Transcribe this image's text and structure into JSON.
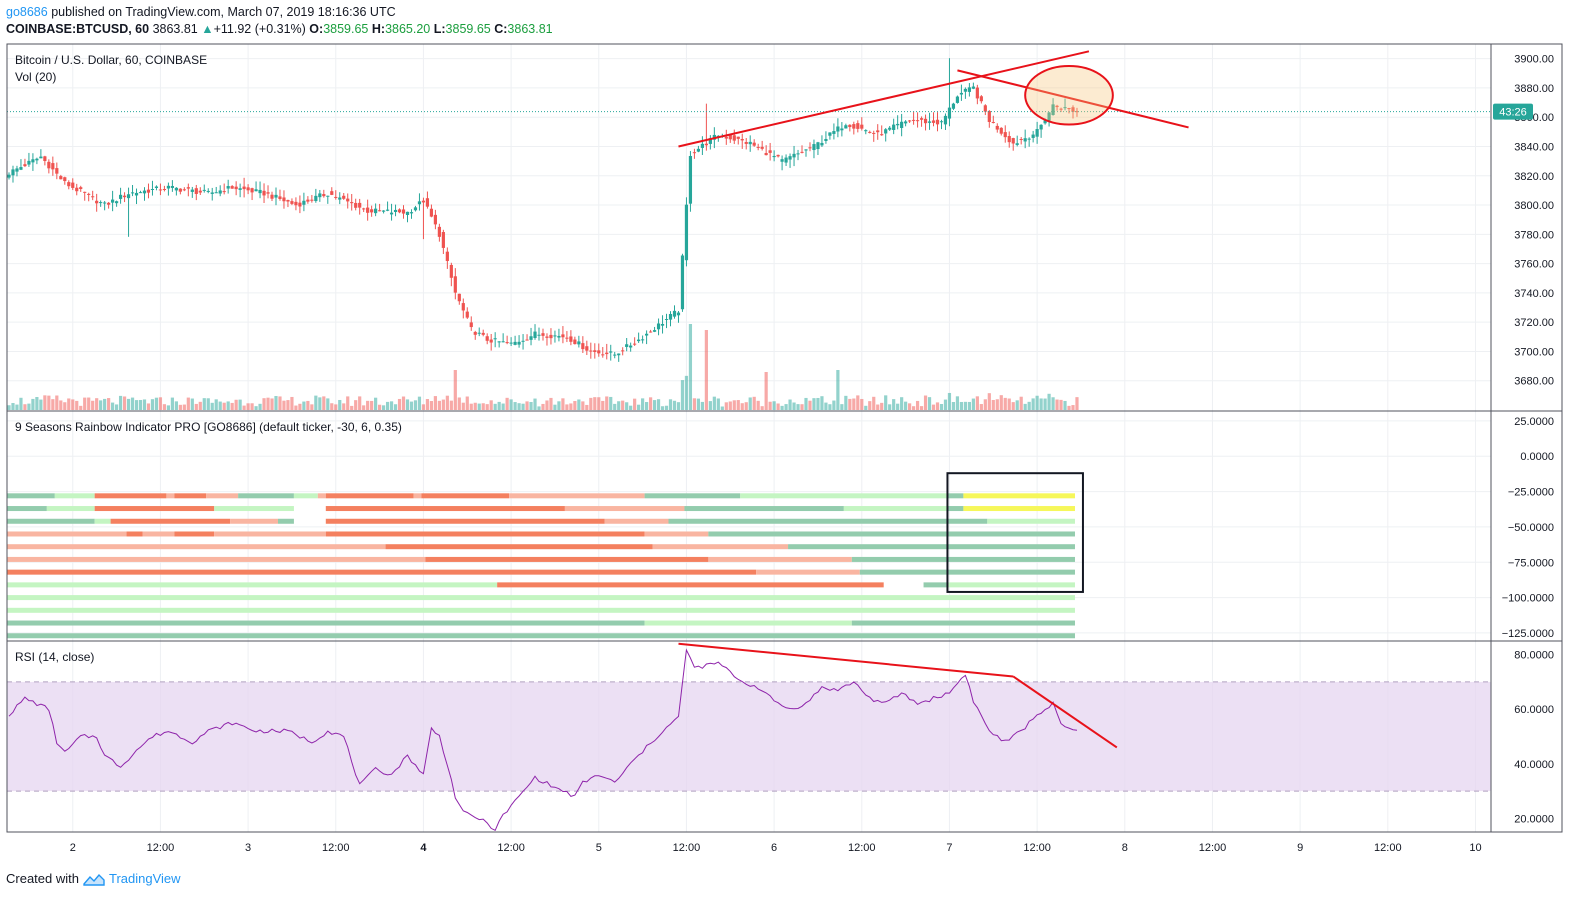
{
  "header": {
    "user": "go8686",
    "published": "published on TradingView.com, March 07, 2019 18:16:36 UTC",
    "symbol": "COINBASE:BTCUSD, 60",
    "last": "3863.81",
    "change": "+11.92 (+0.31%)",
    "o_label": "O:",
    "o_val": "3859.65",
    "h_label": "H:",
    "h_val": "3865.20",
    "l_label": "L:",
    "l_val": "3859.65",
    "c_label": "C:",
    "c_val": "3863.81"
  },
  "footer": {
    "created_with": "Created with",
    "brand": "TradingView"
  },
  "colors": {
    "up": "#26a69a",
    "down": "#ef5350",
    "annotation": "#e8121a",
    "rsi_line": "#8e24aa",
    "rsi_band": "#e5d5f0",
    "rainbow": [
      "#f4805f",
      "#f9b5a1",
      "#93ccad",
      "#c4f5c2",
      "#f6f75a"
    ]
  },
  "chart_data": [
    {
      "type": "candlestick",
      "title": "Bitcoin / U.S. Dollar, 60, COINBASE",
      "volume_label": "Vol (20)",
      "price_badge": "43:26",
      "ylim": [
        3660,
        3910
      ],
      "y_ticks": [
        "3900.00",
        "3880.00",
        "3860.00",
        "3840.00",
        "3820.00",
        "3800.00",
        "3780.00",
        "3760.00",
        "3740.00",
        "3720.00",
        "3700.00",
        "3680.00"
      ],
      "last_close": 3863.81,
      "anchors": [
        {
          "t": 0,
          "c": 3822
        },
        {
          "t": 8,
          "c": 3833
        },
        {
          "t": 14,
          "c": 3815
        },
        {
          "t": 24,
          "c": 3800
        },
        {
          "t": 30,
          "c": 3808
        },
        {
          "t": 40,
          "c": 3812
        },
        {
          "t": 50,
          "c": 3808
        },
        {
          "t": 56,
          "c": 3812
        },
        {
          "t": 64,
          "c": 3808
        },
        {
          "t": 72,
          "c": 3800
        },
        {
          "t": 80,
          "c": 3808
        },
        {
          "t": 90,
          "c": 3796
        },
        {
          "t": 100,
          "c": 3795
        },
        {
          "t": 104,
          "c": 3803
        },
        {
          "t": 108,
          "c": 3780
        },
        {
          "t": 112,
          "c": 3740
        },
        {
          "t": 116,
          "c": 3715
        },
        {
          "t": 120,
          "c": 3708
        },
        {
          "t": 126,
          "c": 3705
        },
        {
          "t": 132,
          "c": 3712
        },
        {
          "t": 140,
          "c": 3710
        },
        {
          "t": 146,
          "c": 3700
        },
        {
          "t": 152,
          "c": 3698
        },
        {
          "t": 158,
          "c": 3708
        },
        {
          "t": 164,
          "c": 3720
        },
        {
          "t": 168,
          "c": 3728
        },
        {
          "t": 171,
          "c": 3835
        },
        {
          "t": 178,
          "c": 3848
        },
        {
          "t": 186,
          "c": 3842
        },
        {
          "t": 194,
          "c": 3830
        },
        {
          "t": 202,
          "c": 3840
        },
        {
          "t": 210,
          "c": 3856
        },
        {
          "t": 218,
          "c": 3848
        },
        {
          "t": 226,
          "c": 3858
        },
        {
          "t": 234,
          "c": 3856
        },
        {
          "t": 238,
          "c": 3875
        },
        {
          "t": 242,
          "c": 3880
        },
        {
          "t": 246,
          "c": 3858
        },
        {
          "t": 252,
          "c": 3842
        },
        {
          "t": 258,
          "c": 3850
        },
        {
          "t": 262,
          "c": 3868
        },
        {
          "t": 268,
          "c": 3863.81
        }
      ],
      "x_ticks": [
        {
          "t": 16,
          "label": "2"
        },
        {
          "t": 38,
          "label": "12:00"
        },
        {
          "t": 60,
          "label": "3"
        },
        {
          "t": 82,
          "label": "12:00"
        },
        {
          "t": 104,
          "label": "4"
        },
        {
          "t": 126,
          "label": "12:00"
        },
        {
          "t": 148,
          "label": "5"
        },
        {
          "t": 170,
          "label": "12:00"
        },
        {
          "t": 192,
          "label": "6"
        },
        {
          "t": 214,
          "label": "12:00"
        },
        {
          "t": 236,
          "label": "7"
        },
        {
          "t": 258,
          "label": "12:00"
        },
        {
          "t": 280,
          "label": "8"
        },
        {
          "t": 302,
          "label": "12:00"
        },
        {
          "t": 324,
          "label": "9"
        },
        {
          "t": 346,
          "label": "12:00"
        },
        {
          "t": 368,
          "label": "10"
        }
      ],
      "trendlines": [
        {
          "from": {
            "t": 168,
            "p": 3840
          },
          "to": {
            "t": 271,
            "p": 3905
          }
        },
        {
          "from": {
            "t": 238,
            "p": 3892
          },
          "to": {
            "t": 296,
            "p": 3853
          }
        }
      ],
      "highlight_ellipse": {
        "t": 266,
        "p": 3875,
        "rt": 11,
        "rp": 20
      }
    },
    {
      "type": "heatmap",
      "title": "9 Seasons Rainbow Indicator PRO [GO8686] (default ticker, -30, 6, 0.35)",
      "ylim": [
        -130,
        32
      ],
      "y_ticks": [
        "25.0000",
        "0.0000",
        "−25.0000",
        "−50.0000",
        "−75.0000",
        "−100.0000",
        "−125.0000"
      ],
      "rows": [
        {
          "y": -28,
          "segments": [
            [
              0,
              12,
              "#93ccad"
            ],
            [
              12,
              22,
              "#c4f5c2"
            ],
            [
              22,
              40,
              "#f4805f"
            ],
            [
              40,
              42,
              "#f9b5a1"
            ],
            [
              42,
              50,
              "#f4805f"
            ],
            [
              50,
              58,
              "#f9b5a1"
            ],
            [
              58,
              72,
              "#93ccad"
            ],
            [
              72,
              78,
              "#c4f5c2"
            ],
            [
              78,
              80,
              "#f9b5a1"
            ],
            [
              80,
              102,
              "#f4805f"
            ],
            [
              102,
              104,
              "#f9b5a1"
            ],
            [
              104,
              126,
              "#f4805f"
            ],
            [
              126,
              160,
              "#f9b5a1"
            ],
            [
              160,
              184,
              "#93ccad"
            ],
            [
              184,
              236,
              "#c4f5c2"
            ],
            [
              236,
              240,
              "#93ccad"
            ],
            [
              240,
              268,
              "#f6f75a"
            ]
          ]
        },
        {
          "y": -37,
          "segments": [
            [
              0,
              10,
              "#93ccad"
            ],
            [
              10,
              22,
              "#c4f5c2"
            ],
            [
              22,
              52,
              "#f4805f"
            ],
            [
              52,
              72,
              "#c4f5c2"
            ],
            [
              80,
              140,
              "#f4805f"
            ],
            [
              140,
              170,
              "#f9b5a1"
            ],
            [
              170,
              210,
              "#93ccad"
            ],
            [
              210,
              236,
              "#c4f5c2"
            ],
            [
              236,
              240,
              "#93ccad"
            ],
            [
              240,
              268,
              "#f6f75a"
            ]
          ]
        },
        {
          "y": -46,
          "segments": [
            [
              0,
              22,
              "#93ccad"
            ],
            [
              22,
              26,
              "#c4f5c2"
            ],
            [
              26,
              56,
              "#f4805f"
            ],
            [
              56,
              68,
              "#f9b5a1"
            ],
            [
              68,
              72,
              "#93ccad"
            ],
            [
              80,
              150,
              "#f4805f"
            ],
            [
              150,
              166,
              "#f9b5a1"
            ],
            [
              166,
              246,
              "#93ccad"
            ],
            [
              246,
              268,
              "#c4f5c2"
            ]
          ]
        },
        {
          "y": -55,
          "segments": [
            [
              0,
              30,
              "#f9b5a1"
            ],
            [
              30,
              34,
              "#f4805f"
            ],
            [
              34,
              42,
              "#f9b5a1"
            ],
            [
              42,
              52,
              "#f4805f"
            ],
            [
              52,
              80,
              "#f9b5a1"
            ],
            [
              80,
              160,
              "#f4805f"
            ],
            [
              160,
              176,
              "#f9b5a1"
            ],
            [
              176,
              268,
              "#93ccad"
            ]
          ]
        },
        {
          "y": -64,
          "segments": [
            [
              0,
              95,
              "#f9b5a1"
            ],
            [
              95,
              162,
              "#f4805f"
            ],
            [
              162,
              196,
              "#f9b5a1"
            ],
            [
              196,
              268,
              "#93ccad"
            ]
          ]
        },
        {
          "y": -73,
          "segments": [
            [
              0,
              105,
              "#f9b5a1"
            ],
            [
              105,
              176,
              "#f4805f"
            ],
            [
              176,
              212,
              "#f9b5a1"
            ],
            [
              212,
              268,
              "#93ccad"
            ]
          ]
        },
        {
          "y": -82,
          "segments": [
            [
              0,
              188,
              "#f4805f"
            ],
            [
              188,
              214,
              "#f9b5a1"
            ],
            [
              214,
              268,
              "#93ccad"
            ]
          ]
        },
        {
          "y": -91,
          "segments": [
            [
              0,
              123,
              "#c4f5c2"
            ],
            [
              123,
              220,
              "#f4805f"
            ],
            [
              230,
              236,
              "#93ccad"
            ],
            [
              236,
              268,
              "#c4f5c2"
            ]
          ]
        },
        {
          "y": -100,
          "segments": [
            [
              0,
              268,
              "#c4f5c2"
            ]
          ]
        },
        {
          "y": -109,
          "segments": [
            [
              0,
              268,
              "#c4f5c2"
            ]
          ]
        },
        {
          "y": -118,
          "segments": [
            [
              0,
              160,
              "#93ccad"
            ],
            [
              160,
              212,
              "#c4f5c2"
            ],
            [
              212,
              268,
              "#93ccad"
            ]
          ]
        },
        {
          "y": -127,
          "segments": [
            [
              0,
              268,
              "#93ccad"
            ]
          ]
        }
      ],
      "highlight_box": {
        "t0": 236,
        "t1": 270,
        "y0": -12,
        "y1": -96
      }
    },
    {
      "type": "line",
      "title": "RSI (14, close)",
      "ylim": [
        15,
        85
      ],
      "y_ticks": [
        "80.0000",
        "60.0000",
        "40.0000",
        "20.0000"
      ],
      "band": [
        30,
        70
      ],
      "anchors": [
        {
          "t": 0,
          "v": 58
        },
        {
          "t": 4,
          "v": 64
        },
        {
          "t": 10,
          "v": 60
        },
        {
          "t": 12,
          "v": 48
        },
        {
          "t": 14,
          "v": 44
        },
        {
          "t": 18,
          "v": 50
        },
        {
          "t": 22,
          "v": 50
        },
        {
          "t": 24,
          "v": 43
        },
        {
          "t": 28,
          "v": 39
        },
        {
          "t": 32,
          "v": 45
        },
        {
          "t": 36,
          "v": 50
        },
        {
          "t": 40,
          "v": 52
        },
        {
          "t": 46,
          "v": 48
        },
        {
          "t": 50,
          "v": 52
        },
        {
          "t": 56,
          "v": 55
        },
        {
          "t": 62,
          "v": 52
        },
        {
          "t": 70,
          "v": 52
        },
        {
          "t": 76,
          "v": 48
        },
        {
          "t": 80,
          "v": 52
        },
        {
          "t": 84,
          "v": 50
        },
        {
          "t": 88,
          "v": 32
        },
        {
          "t": 92,
          "v": 38
        },
        {
          "t": 96,
          "v": 36
        },
        {
          "t": 100,
          "v": 43
        },
        {
          "t": 104,
          "v": 36
        },
        {
          "t": 106,
          "v": 53
        },
        {
          "t": 108,
          "v": 50
        },
        {
          "t": 110,
          "v": 40
        },
        {
          "t": 112,
          "v": 28
        },
        {
          "t": 114,
          "v": 22
        },
        {
          "t": 118,
          "v": 20
        },
        {
          "t": 122,
          "v": 16
        },
        {
          "t": 124,
          "v": 21
        },
        {
          "t": 128,
          "v": 28
        },
        {
          "t": 132,
          "v": 35
        },
        {
          "t": 136,
          "v": 32
        },
        {
          "t": 142,
          "v": 28
        },
        {
          "t": 144,
          "v": 33
        },
        {
          "t": 148,
          "v": 36
        },
        {
          "t": 152,
          "v": 33
        },
        {
          "t": 156,
          "v": 40
        },
        {
          "t": 160,
          "v": 46
        },
        {
          "t": 164,
          "v": 52
        },
        {
          "t": 168,
          "v": 57
        },
        {
          "t": 170,
          "v": 82
        },
        {
          "t": 172,
          "v": 75
        },
        {
          "t": 178,
          "v": 77
        },
        {
          "t": 184,
          "v": 70
        },
        {
          "t": 188,
          "v": 68
        },
        {
          "t": 192,
          "v": 63
        },
        {
          "t": 196,
          "v": 60
        },
        {
          "t": 200,
          "v": 62
        },
        {
          "t": 204,
          "v": 68
        },
        {
          "t": 208,
          "v": 67
        },
        {
          "t": 212,
          "v": 70
        },
        {
          "t": 216,
          "v": 64
        },
        {
          "t": 220,
          "v": 62
        },
        {
          "t": 224,
          "v": 66
        },
        {
          "t": 228,
          "v": 62
        },
        {
          "t": 232,
          "v": 64
        },
        {
          "t": 236,
          "v": 66
        },
        {
          "t": 240,
          "v": 73
        },
        {
          "t": 242,
          "v": 63
        },
        {
          "t": 246,
          "v": 52
        },
        {
          "t": 250,
          "v": 48
        },
        {
          "t": 254,
          "v": 52
        },
        {
          "t": 258,
          "v": 58
        },
        {
          "t": 262,
          "v": 62
        },
        {
          "t": 264,
          "v": 54
        },
        {
          "t": 268,
          "v": 52
        }
      ],
      "trendlines": [
        {
          "from": {
            "t": 168,
            "v": 84
          },
          "to": {
            "t": 252,
            "v": 72
          }
        },
        {
          "from": {
            "t": 252,
            "v": 72
          },
          "to": {
            "t": 278,
            "v": 46
          }
        }
      ]
    }
  ]
}
